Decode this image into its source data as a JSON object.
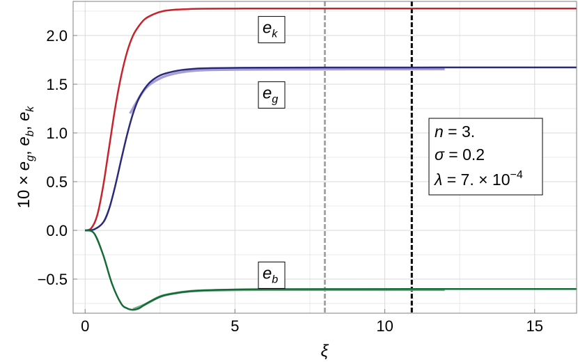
{
  "chart_data": {
    "type": "line",
    "xlabel": "ξ",
    "ylabel": "10 × e_g, e_b, e_k",
    "xlim": [
      -0.4,
      16.4
    ],
    "ylim": [
      -0.85,
      2.35
    ],
    "x_ticks": [
      0,
      5,
      10,
      15
    ],
    "y_ticks": [
      -0.5,
      0.0,
      0.5,
      1.0,
      1.5,
      2.0
    ],
    "x_tick_labels": [
      "0",
      "5",
      "10",
      "15"
    ],
    "y_tick_labels": [
      "−0.5",
      "0.0",
      "0.5",
      "1.0",
      "1.5",
      "2.0"
    ],
    "grid": true,
    "colors": {
      "e_k": "#c8232c",
      "e_g": "#2b2a7a",
      "e_g_light": "#a49fd4",
      "e_b": "#136b35",
      "e_b_light": "#7aa88a",
      "vline_gray": "#a6a6a6",
      "vline_black": "#000000"
    },
    "series": [
      {
        "name": "e_k",
        "x": [
          0,
          0.2,
          0.4,
          0.6,
          0.8,
          1.0,
          1.2,
          1.4,
          1.6,
          1.8,
          2.0,
          2.3,
          2.6,
          3.0,
          3.5,
          4.0,
          5.0,
          6.0,
          8.0,
          12.0,
          16.4
        ],
        "y": [
          0.0,
          0.02,
          0.15,
          0.45,
          0.85,
          1.25,
          1.58,
          1.83,
          2.0,
          2.1,
          2.17,
          2.22,
          2.25,
          2.265,
          2.272,
          2.275,
          2.276,
          2.277,
          2.277,
          2.277,
          2.277
        ]
      },
      {
        "name": "e_g",
        "x": [
          0,
          0.3,
          0.6,
          0.8,
          1.0,
          1.2,
          1.4,
          1.6,
          1.8,
          2.0,
          2.2,
          2.5,
          2.8,
          3.2,
          3.7,
          4.2,
          5.0,
          6.0,
          8.0,
          12.0,
          16.4
        ],
        "y": [
          0.0,
          0.01,
          0.08,
          0.22,
          0.45,
          0.72,
          0.98,
          1.2,
          1.36,
          1.46,
          1.53,
          1.59,
          1.62,
          1.645,
          1.66,
          1.665,
          1.668,
          1.67,
          1.671,
          1.672,
          1.672
        ]
      },
      {
        "name": "e_b",
        "x": [
          0,
          0.3,
          0.6,
          0.9,
          1.2,
          1.4,
          1.6,
          1.8,
          2.0,
          2.3,
          2.6,
          3.0,
          3.5,
          4.0,
          5.0,
          6.0,
          8.0,
          12.0,
          16.4
        ],
        "y": [
          0.0,
          -0.03,
          -0.25,
          -0.55,
          -0.75,
          -0.8,
          -0.815,
          -0.8,
          -0.76,
          -0.71,
          -0.67,
          -0.645,
          -0.625,
          -0.615,
          -0.607,
          -0.604,
          -0.603,
          -0.602,
          -0.602
        ]
      }
    ],
    "reference_lines": [
      {
        "name": "e_g-reference",
        "x": [
          1.5,
          2.0,
          2.5,
          3.0,
          3.5,
          4.0,
          5.0,
          6.0,
          8.0,
          12.0
        ],
        "y": [
          1.2,
          1.45,
          1.56,
          1.61,
          1.635,
          1.645,
          1.65,
          1.652,
          1.654,
          1.655
        ]
      },
      {
        "name": "e_b-reference",
        "x": [
          1.6,
          2.0,
          2.5,
          3.0,
          3.5,
          4.0,
          5.0,
          6.0,
          8.0,
          12.0
        ],
        "y": [
          -0.81,
          -0.76,
          -0.68,
          -0.645,
          -0.625,
          -0.617,
          -0.612,
          -0.61,
          -0.61,
          -0.61
        ]
      }
    ],
    "vlines": [
      {
        "x": 8.0,
        "color": "#a6a6a6"
      },
      {
        "x": 10.9,
        "color": "#000000"
      }
    ],
    "curve_labels": [
      {
        "base": "e",
        "sub": "k",
        "x": 6.2,
        "y": 2.06
      },
      {
        "base": "e",
        "sub": "g",
        "x": 6.2,
        "y": 1.39
      },
      {
        "base": "e",
        "sub": "b",
        "x": 6.2,
        "y": -0.46
      }
    ],
    "params": {
      "line1": "n = 3.",
      "line2": "σ = 0.2",
      "line3_prefix": "λ = 7. × 10",
      "line3_exp": "−4"
    }
  }
}
